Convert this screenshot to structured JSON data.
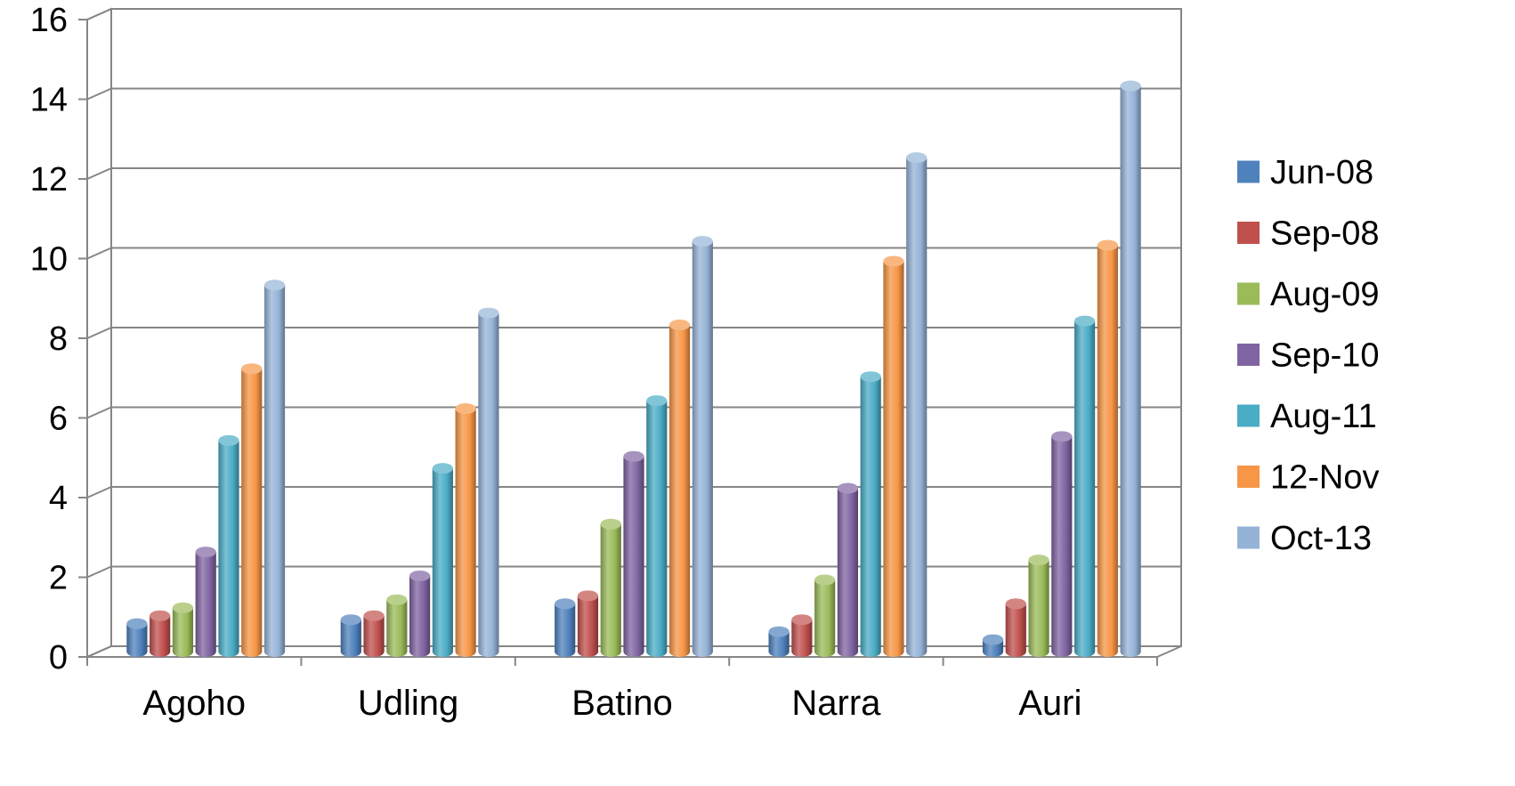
{
  "chart_data": {
    "type": "bar",
    "title": "",
    "xlabel": "",
    "ylabel": "",
    "ylim": [
      0,
      16
    ],
    "y_ticks": [
      "0",
      "2",
      "4",
      "6",
      "8",
      "10",
      "12",
      "14",
      "16"
    ],
    "grid": true,
    "legend_position": "right",
    "categories": [
      "Agoho",
      "Udling",
      "Batino",
      "Narra",
      "Auri"
    ],
    "series": [
      {
        "name": "Jun-08",
        "color": "#4F81BD",
        "values": [
          0.7,
          0.8,
          1.2,
          0.5,
          0.3
        ]
      },
      {
        "name": "Sep-08",
        "color": "#C0504D",
        "values": [
          0.9,
          0.9,
          1.4,
          0.8,
          1.2
        ]
      },
      {
        "name": "Aug-09",
        "color": "#9BBB59",
        "values": [
          1.1,
          1.3,
          3.2,
          1.8,
          2.3
        ]
      },
      {
        "name": "Sep-10",
        "color": "#8064A2",
        "values": [
          2.5,
          1.9,
          4.9,
          4.1,
          5.4
        ]
      },
      {
        "name": "Aug-11",
        "color": "#4BACC6",
        "values": [
          5.3,
          4.6,
          6.3,
          6.9,
          8.3
        ]
      },
      {
        "name": "12-Nov",
        "color": "#F79646",
        "values": [
          7.1,
          6.1,
          8.2,
          9.8,
          10.2
        ]
      },
      {
        "name": "Oct-13",
        "color": "#95B3D7",
        "values": [
          9.2,
          8.5,
          10.3,
          12.4,
          14.2
        ]
      }
    ]
  }
}
